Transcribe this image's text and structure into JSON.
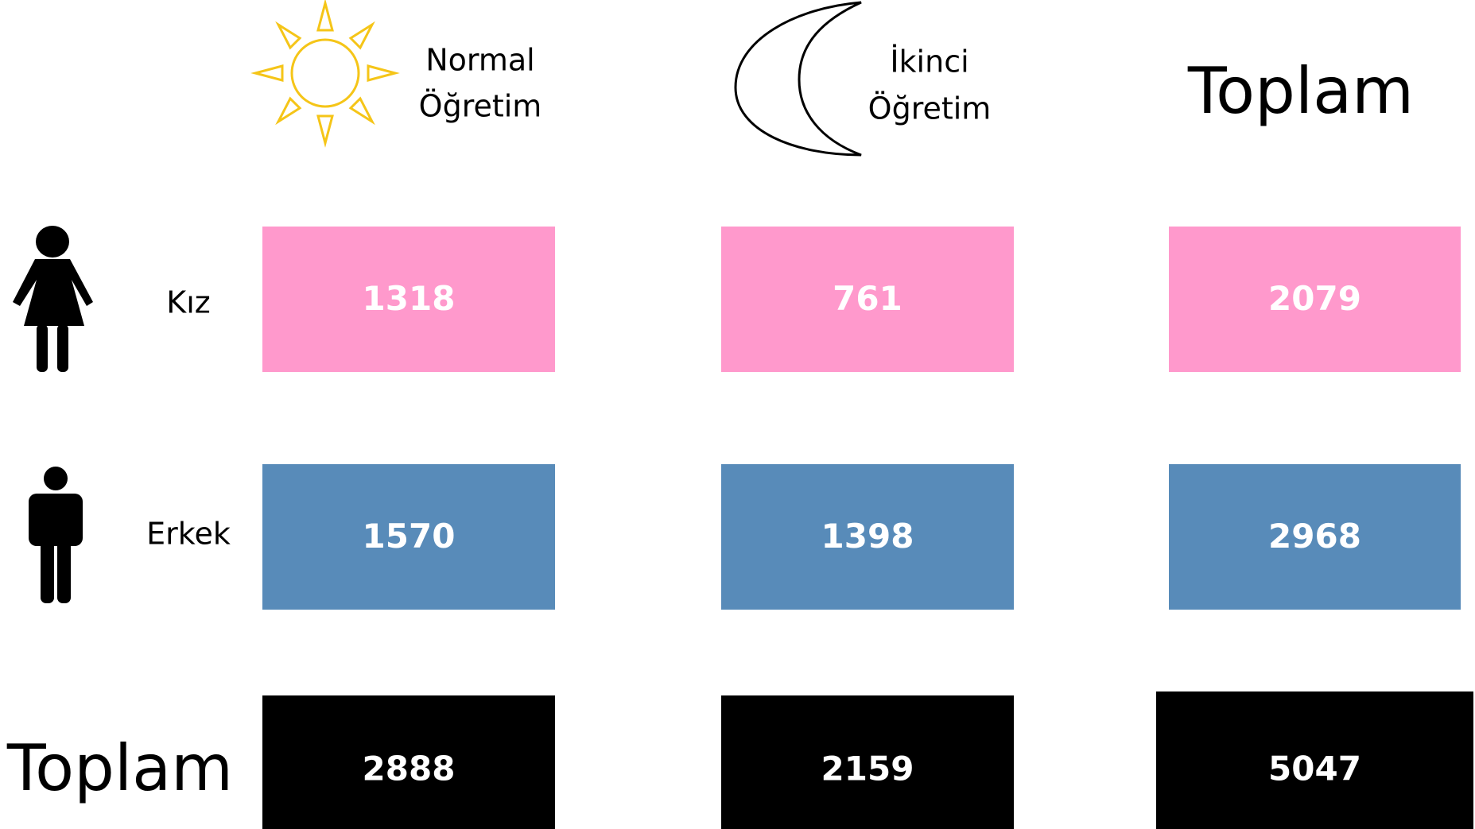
{
  "header": {
    "columns": [
      {
        "lines": [
          "Normal",
          "Öğretim"
        ]
      },
      {
        "lines": [
          "İkinci",
          "Öğretim"
        ]
      },
      {
        "lines": [
          "Toplam"
        ]
      }
    ]
  },
  "table": {
    "rows": [
      {
        "label": "Kız",
        "cells": [
          "1318",
          "761",
          "2079"
        ]
      },
      {
        "label": "Erkek",
        "cells": [
          "1570",
          "1398",
          "2968"
        ]
      },
      {
        "label": "Toplam",
        "cells": [
          "2888",
          "2159",
          "5047"
        ]
      }
    ]
  }
}
